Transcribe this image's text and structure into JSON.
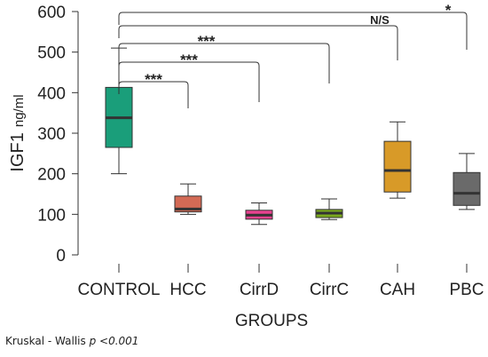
{
  "chart_data": {
    "type": "box",
    "categories": [
      "CONTROL",
      "HCC",
      "CirrD",
      "CirrC",
      "CAH",
      "PBC"
    ],
    "boxes": [
      {
        "name": "CONTROL",
        "min": 200,
        "q1": 265,
        "median": 338,
        "q3": 413,
        "max": 510,
        "color": "#1a9e7a"
      },
      {
        "name": "HCC",
        "min": 100,
        "q1": 106,
        "median": 113,
        "q3": 145,
        "max": 175,
        "color": "#d36a55"
      },
      {
        "name": "CirrD",
        "min": 75,
        "q1": 88,
        "median": 98,
        "q3": 110,
        "max": 128,
        "color": "#e8418f"
      },
      {
        "name": "CirrC",
        "min": 87,
        "q1": 92,
        "median": 103,
        "q3": 112,
        "max": 138,
        "color": "#7aa81e"
      },
      {
        "name": "CAH",
        "min": 140,
        "q1": 155,
        "median": 208,
        "q3": 280,
        "max": 328,
        "color": "#d89a28"
      },
      {
        "name": "PBC",
        "min": 112,
        "q1": 122,
        "median": 152,
        "q3": 203,
        "max": 250,
        "color": "#6a6a6a"
      }
    ],
    "ylabel": "IGF1",
    "ylabel_unit": "ng/ml",
    "xlabel": "GROUPS",
    "ylim": [
      0,
      600
    ],
    "yticks": [
      0,
      100,
      200,
      300,
      400,
      500,
      600
    ],
    "grid": false,
    "comparisons": [
      {
        "from": "CONTROL",
        "to": "HCC",
        "label": "***"
      },
      {
        "from": "CONTROL",
        "to": "CirrD",
        "label": "***"
      },
      {
        "from": "CONTROL",
        "to": "CirrC",
        "label": "***"
      },
      {
        "from": "CONTROL",
        "to": "CAH",
        "label": "N/S"
      },
      {
        "from": "CONTROL",
        "to": "PBC",
        "label": "*"
      }
    ]
  },
  "footnote": {
    "prefix": "Kruskal - Wallis ",
    "p_label": "p <0.001"
  }
}
